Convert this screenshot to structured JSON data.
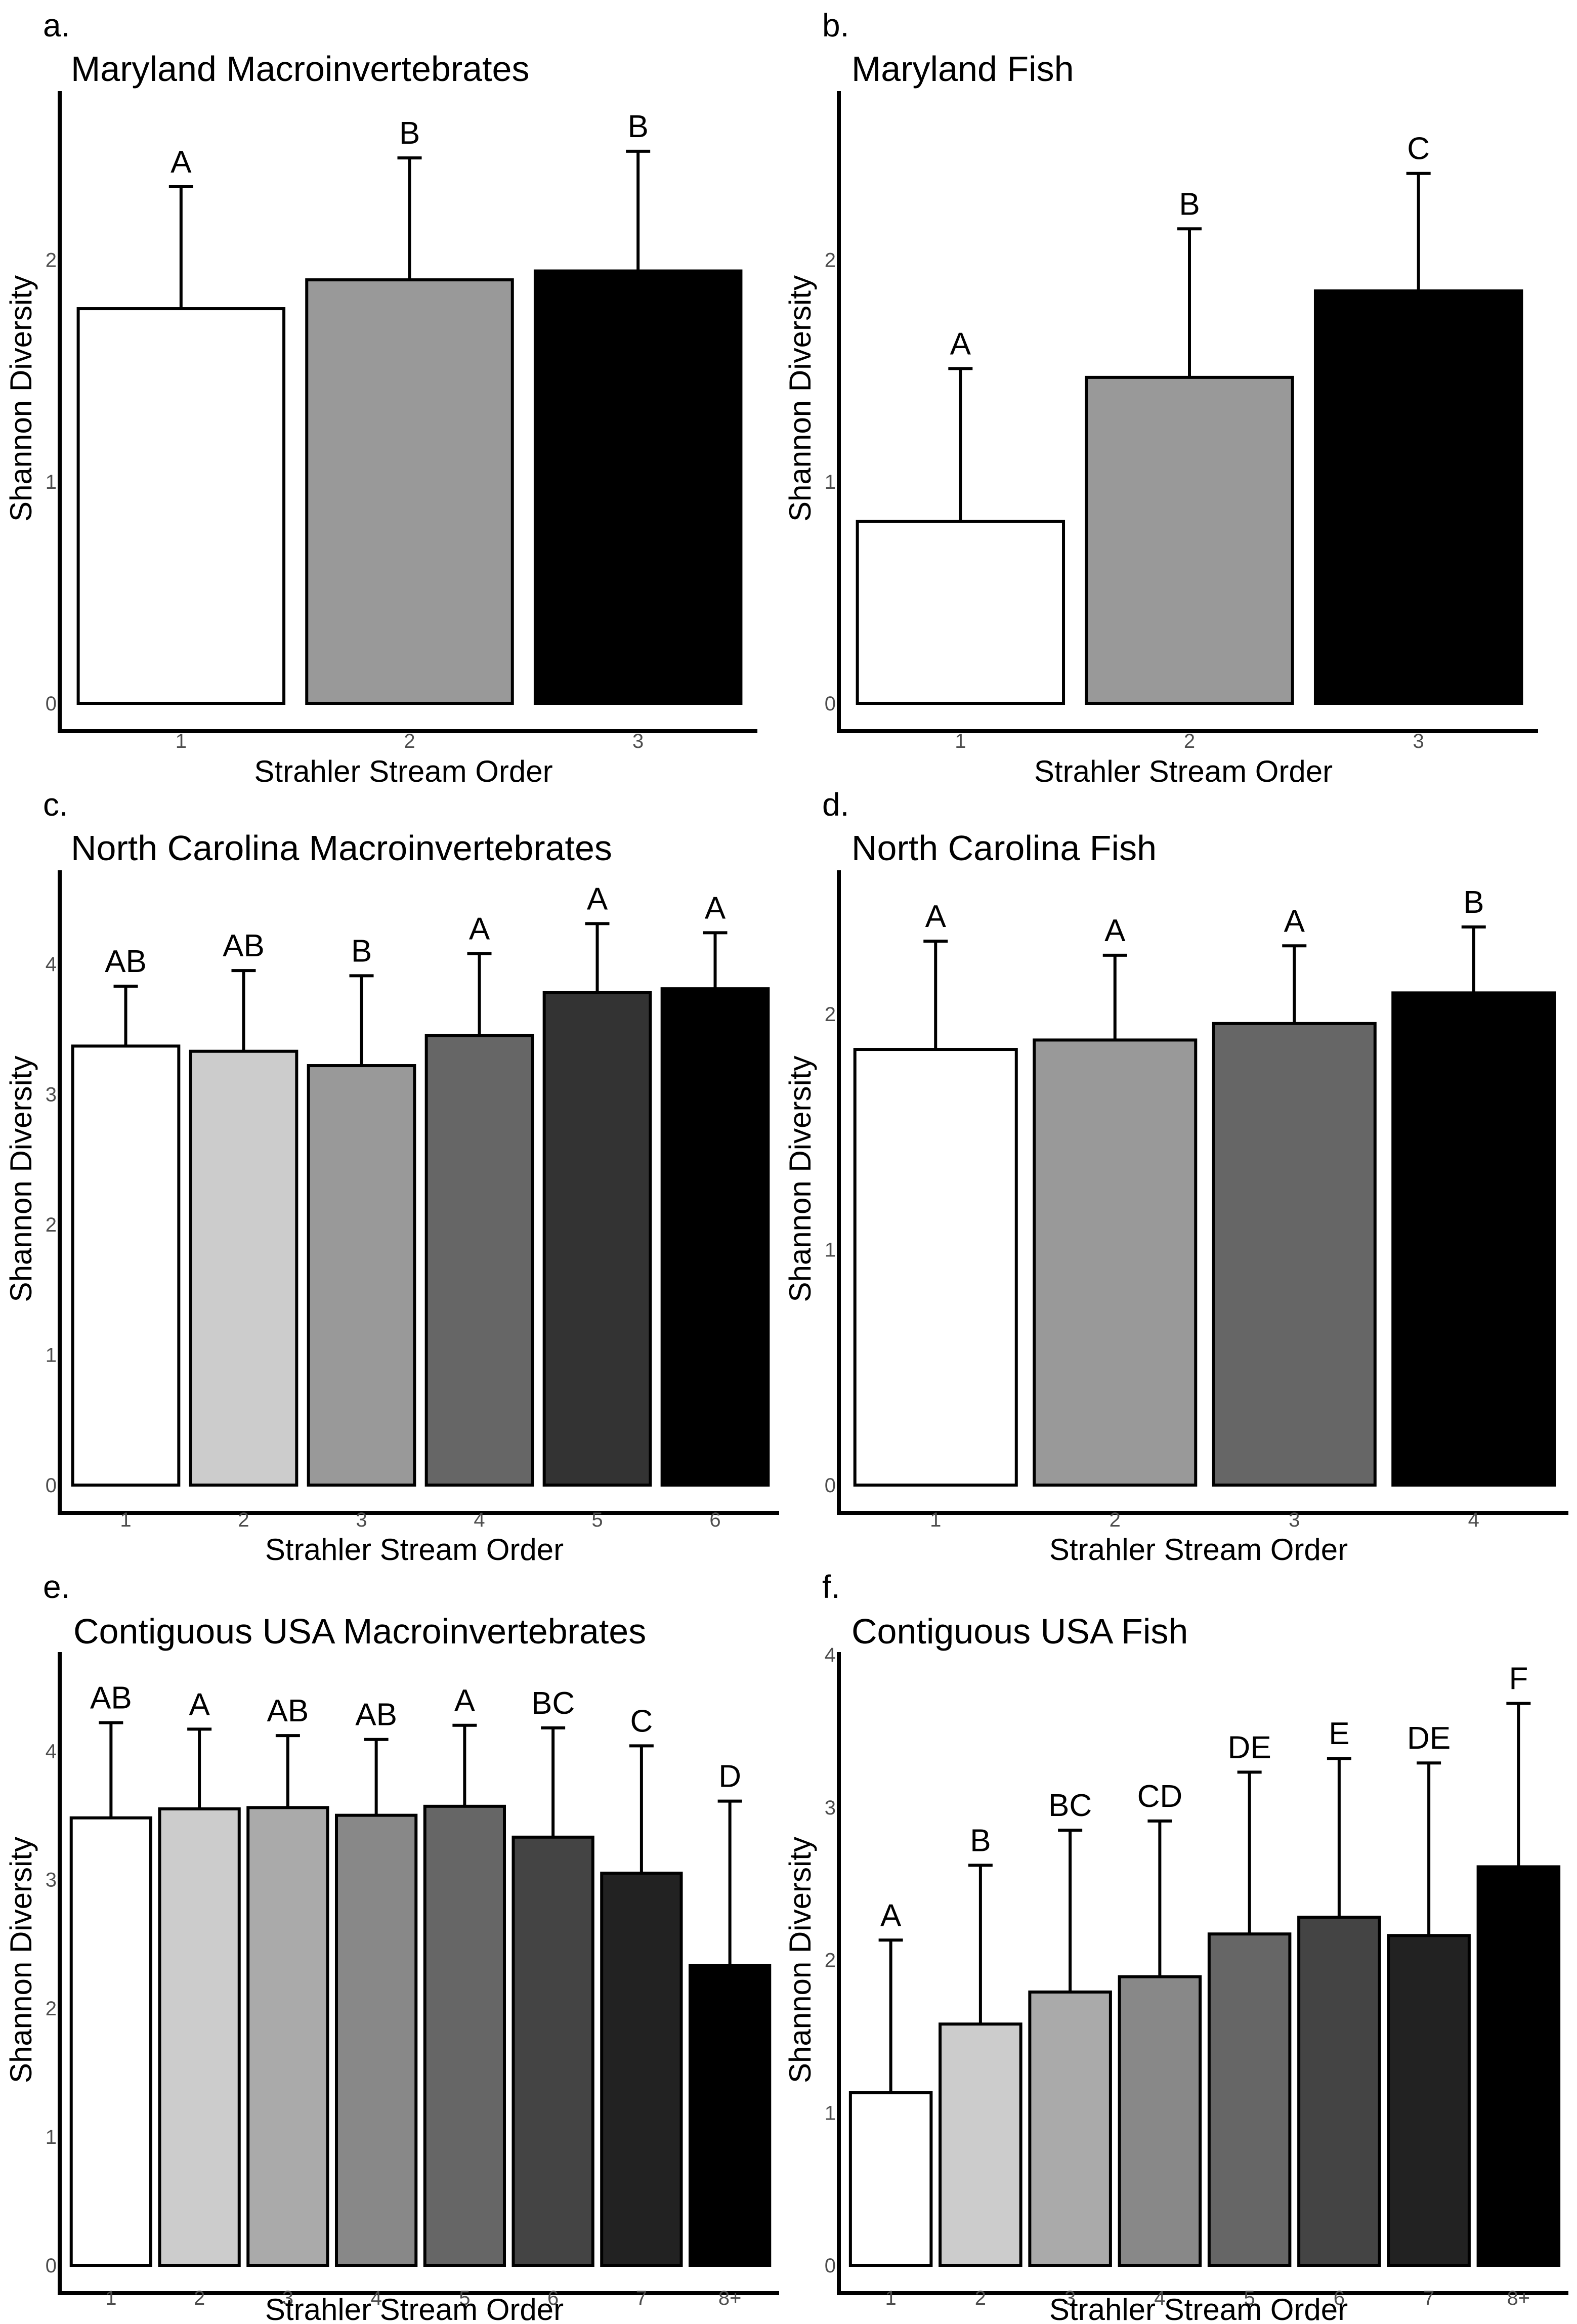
{
  "figure": {
    "xlabel": "Strahler Stream Order",
    "ylabel": "Shannon Diversity"
  },
  "chart_data": [
    {
      "type": "bar",
      "panel": "a.",
      "title": "Maryland Macroinvertebrates",
      "xlabel": "Strahler Stream Order",
      "ylabel": "Shannon Diversity",
      "ylim": [
        0,
        2.75
      ],
      "yticks": [
        0,
        1,
        2
      ],
      "categories": [
        "1",
        "2",
        "3"
      ],
      "values": [
        1.78,
        1.91,
        1.95
      ],
      "errors": [
        0.55,
        0.55,
        0.54
      ],
      "significance": [
        "A",
        "B",
        "B"
      ],
      "colors": [
        "#ffffff",
        "#999999",
        "#000000"
      ]
    },
    {
      "type": "bar",
      "panel": "b.",
      "title": "Maryland Fish",
      "xlabel": "Strahler Stream Order",
      "ylabel": "Shannon Diversity",
      "ylim": [
        0,
        2.75
      ],
      "yticks": [
        0,
        1,
        2
      ],
      "categories": [
        "1",
        "2",
        "3"
      ],
      "values": [
        0.82,
        1.47,
        1.86
      ],
      "errors": [
        0.69,
        0.67,
        0.53
      ],
      "significance": [
        "A",
        "B",
        "C"
      ],
      "colors": [
        "#ffffff",
        "#999999",
        "#000000"
      ]
    },
    {
      "type": "bar",
      "panel": "c.",
      "title": "North Carolina Macroinvertebrates",
      "xlabel": "Strahler Stream Order",
      "ylabel": "Shannon Diversity",
      "ylim": [
        0,
        4.7
      ],
      "yticks": [
        0,
        1,
        2,
        3,
        4
      ],
      "categories": [
        "1",
        "2",
        "3",
        "4",
        "5",
        "6"
      ],
      "values": [
        3.37,
        3.33,
        3.22,
        3.45,
        3.78,
        3.81
      ],
      "errors": [
        0.46,
        0.62,
        0.69,
        0.63,
        0.53,
        0.43
      ],
      "significance": [
        "AB",
        "AB",
        "B",
        "A",
        "A",
        "A"
      ],
      "colors": [
        "#ffffff",
        "#cccccc",
        "#999999",
        "#666666",
        "#333333",
        "#000000"
      ]
    },
    {
      "type": "bar",
      "panel": "d.",
      "title": "North Carolina Fish",
      "xlabel": "Strahler Stream Order",
      "ylabel": "Shannon Diversity",
      "ylim": [
        0,
        2.6
      ],
      "yticks": [
        0,
        1,
        2
      ],
      "categories": [
        "1",
        "2",
        "3",
        "4"
      ],
      "values": [
        1.85,
        1.89,
        1.96,
        2.09
      ],
      "errors": [
        0.46,
        0.36,
        0.33,
        0.28
      ],
      "significance": [
        "A",
        "A",
        "A",
        "B"
      ],
      "colors": [
        "#ffffff",
        "#999999",
        "#666666",
        "#000000"
      ]
    },
    {
      "type": "bar",
      "panel": "e.",
      "title": "Contiguous USA Macroinvertebrates",
      "xlabel": "Strahler Stream Order",
      "ylabel": "Shannon Diversity",
      "ylim": [
        0,
        4.75
      ],
      "yticks": [
        0,
        1,
        2,
        3,
        4
      ],
      "categories": [
        "1",
        "2",
        "3",
        "4",
        "5",
        "6",
        "7",
        "8+"
      ],
      "values": [
        3.48,
        3.55,
        3.56,
        3.5,
        3.57,
        3.33,
        3.05,
        2.33
      ],
      "errors": [
        0.74,
        0.62,
        0.56,
        0.59,
        0.63,
        0.85,
        0.99,
        1.28
      ],
      "significance": [
        "AB",
        "A",
        "AB",
        "AB",
        "A",
        "BC",
        "C",
        "D"
      ],
      "colors": [
        "#ffffff",
        "#cccccc",
        "#aaaaaa",
        "#888888",
        "#666666",
        "#444444",
        "#222222",
        "#000000"
      ]
    },
    {
      "type": "bar",
      "panel": "f.",
      "title": "Contiguous USA Fish",
      "xlabel": "Strahler Stream Order",
      "ylabel": "Shannon Diversity",
      "ylim": [
        0,
        4.0
      ],
      "yticks": [
        0,
        1,
        2,
        3,
        4
      ],
      "categories": [
        "1",
        "2",
        "3",
        "4",
        "5",
        "6",
        "7",
        "8+"
      ],
      "values": [
        1.13,
        1.58,
        1.79,
        1.89,
        2.17,
        2.28,
        2.16,
        2.61
      ],
      "errors": [
        1.0,
        1.04,
        1.06,
        1.02,
        1.06,
        1.04,
        1.13,
        1.07
      ],
      "significance": [
        "A",
        "B",
        "BC",
        "CD",
        "DE",
        "E",
        "DE",
        "F"
      ],
      "colors": [
        "#ffffff",
        "#cccccc",
        "#aaaaaa",
        "#888888",
        "#666666",
        "#444444",
        "#222222",
        "#000000"
      ]
    }
  ]
}
